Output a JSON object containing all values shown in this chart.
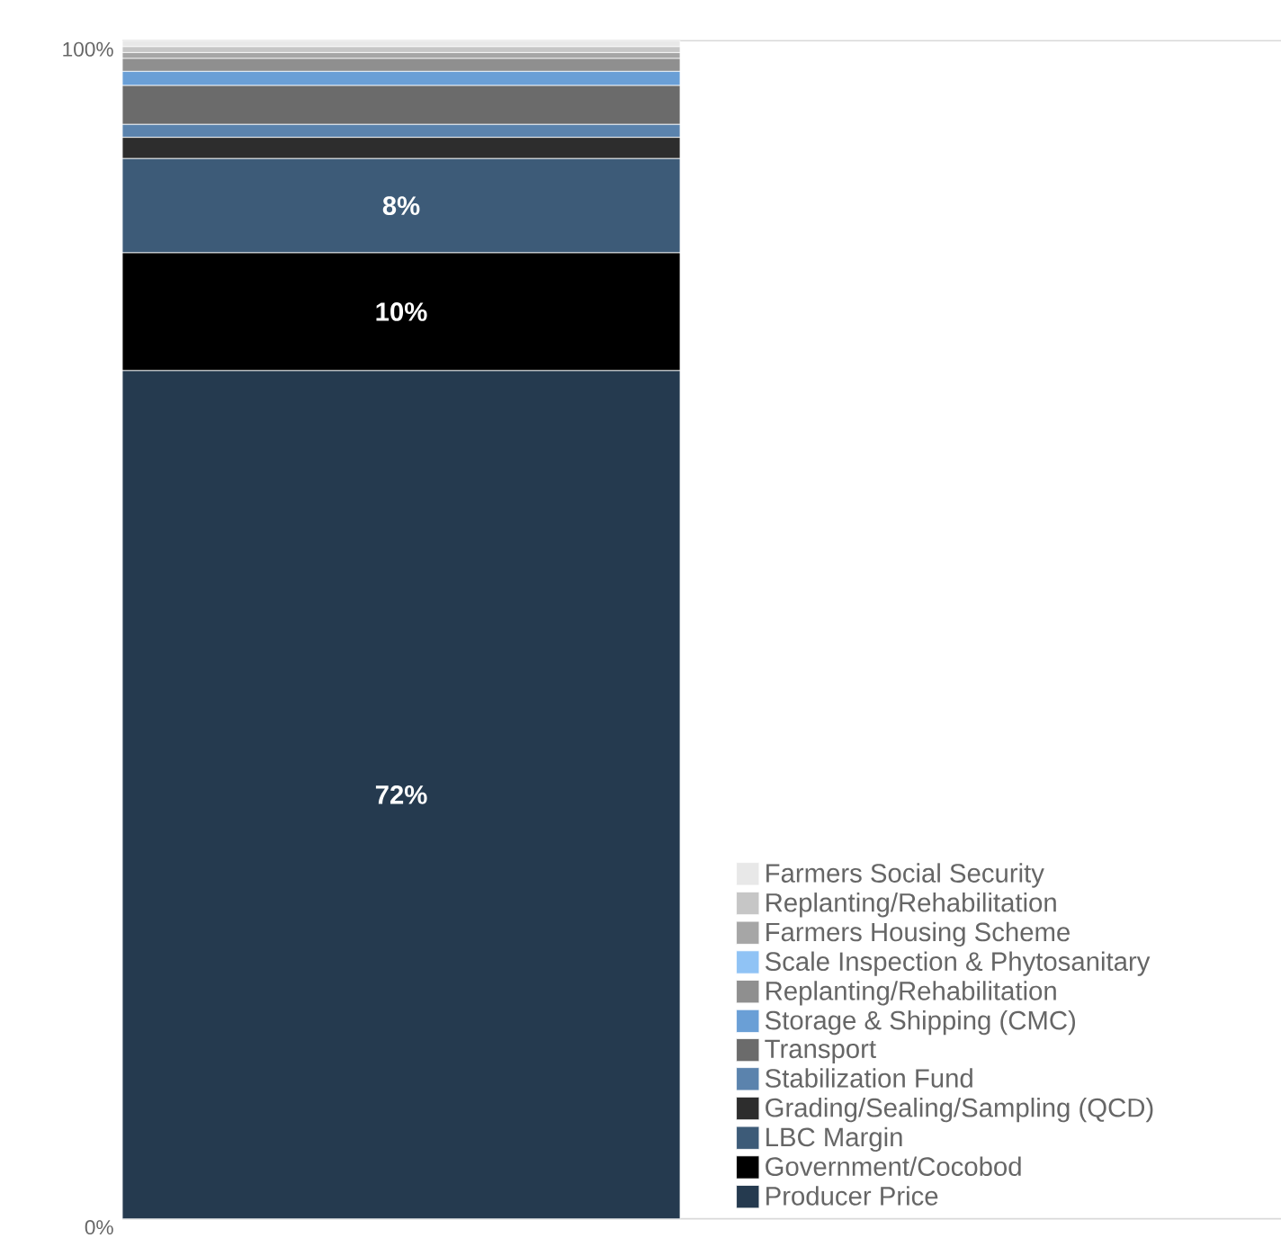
{
  "chart_data": {
    "type": "bar",
    "stacked": true,
    "categories": [
      null
    ],
    "ylim": [
      0,
      100
    ],
    "yticks": [
      {
        "value": 0,
        "label": "0%"
      },
      {
        "value": 100,
        "label": "100%"
      }
    ],
    "grid": "y",
    "legend": "bottom right",
    "tick_labels": "y",
    "series": [
      {
        "name": "Producer Price",
        "color": "#253a4f",
        "values": [
          72
        ],
        "value_labels": [
          "72%"
        ]
      },
      {
        "name": "Government/Cocobod",
        "color": "#000000",
        "values": [
          10
        ],
        "value_labels": [
          "10%"
        ]
      },
      {
        "name": "LBC Margin",
        "color": "#3d5b78",
        "values": [
          8
        ],
        "value_labels": [
          "8%"
        ]
      },
      {
        "name": "Grading/Sealing/Sampling (QCD)",
        "color": "#2d2d2d",
        "values": [
          1.8
        ]
      },
      {
        "name": "Stabilization Fund",
        "color": "#5b83ad",
        "values": [
          1.1
        ]
      },
      {
        "name": "Transport",
        "color": "#6b6b6b",
        "values": [
          3.3
        ]
      },
      {
        "name": "Storage & Shipping (CMC)",
        "color": "#6a9fd6",
        "values": [
          1.2
        ]
      },
      {
        "name": "Replanting/Rehabilitation",
        "color": "#8f8f8f",
        "values": [
          1.1
        ]
      },
      {
        "name": "Scale Inspection & Phytosanitary",
        "color": "#90c3f5",
        "values": [
          0
        ]
      },
      {
        "name": "Farmers Housing Scheme",
        "color": "#a6a6a6",
        "values": [
          0.5
        ]
      },
      {
        "name": "Replanting/Rehabilitation",
        "color": "#c6c6c6",
        "values": [
          0.5
        ]
      },
      {
        "name": "Farmers Social Security",
        "color": "#e8e8e8",
        "values": [
          0.5
        ]
      }
    ]
  }
}
